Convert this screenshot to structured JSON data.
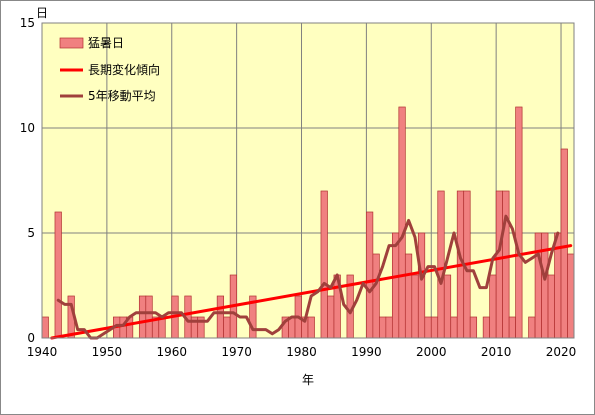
{
  "chart_data": {
    "type": "bar",
    "ylabel": "日",
    "xlabel": "年",
    "ylim": [
      0,
      15
    ],
    "xlim": [
      1940,
      2022
    ],
    "yticks": [
      0,
      5,
      10,
      15
    ],
    "xticks": [
      1940,
      1950,
      1960,
      1970,
      1980,
      1990,
      2000,
      2010,
      2020
    ],
    "grid": true,
    "legend_position": "top-left",
    "colors": {
      "bar_fill": "#F08080",
      "bar_stroke": "#B03030",
      "trend": "#FF0000",
      "moving_avg": "#A0403C",
      "plot_bg": "#FFFFC0",
      "grid": "#808080"
    },
    "series": [
      {
        "name": "猛暑日",
        "type": "bar",
        "x": [
          1940,
          1941,
          1942,
          1943,
          1944,
          1945,
          1946,
          1947,
          1948,
          1949,
          1950,
          1951,
          1952,
          1953,
          1954,
          1955,
          1956,
          1957,
          1958,
          1959,
          1960,
          1961,
          1962,
          1963,
          1964,
          1965,
          1966,
          1967,
          1968,
          1969,
          1970,
          1971,
          1972,
          1973,
          1974,
          1975,
          1976,
          1977,
          1978,
          1979,
          1980,
          1981,
          1982,
          1983,
          1984,
          1985,
          1986,
          1987,
          1988,
          1989,
          1990,
          1991,
          1992,
          1993,
          1994,
          1995,
          1996,
          1997,
          1998,
          1999,
          2000,
          2001,
          2002,
          2003,
          2004,
          2005,
          2006,
          2007,
          2008,
          2009,
          2010,
          2011,
          2012,
          2013,
          2014,
          2015,
          2016,
          2017,
          2018,
          2019,
          2020,
          2021
        ],
        "values": [
          1,
          0,
          6,
          0,
          2,
          0,
          0,
          0,
          0,
          0,
          0,
          1,
          1,
          1,
          0,
          2,
          2,
          1,
          1,
          0,
          2,
          0,
          2,
          1,
          1,
          0,
          0,
          2,
          1,
          3,
          0,
          0,
          2,
          0,
          0,
          0,
          0,
          1,
          1,
          2,
          1,
          1,
          0,
          7,
          2,
          3,
          0,
          3,
          0,
          0,
          6,
          4,
          1,
          1,
          5,
          11,
          4,
          3,
          5,
          1,
          1,
          7,
          3,
          1,
          7,
          7,
          1,
          0,
          1,
          3,
          7,
          7,
          1,
          11,
          0,
          1,
          5,
          5,
          3,
          5,
          9,
          4
        ]
      },
      {
        "name": "長期変化傾向",
        "type": "line",
        "x": [
          1941,
          2021
        ],
        "values": [
          0.0,
          4.4
        ]
      },
      {
        "name": "5年移動平均",
        "type": "line",
        "x": [
          1942,
          1943,
          1944,
          1945,
          1946,
          1947,
          1948,
          1949,
          1950,
          1951,
          1952,
          1953,
          1954,
          1955,
          1956,
          1957,
          1958,
          1959,
          1960,
          1961,
          1962,
          1963,
          1964,
          1965,
          1966,
          1967,
          1968,
          1969,
          1970,
          1971,
          1972,
          1973,
          1974,
          1975,
          1976,
          1977,
          1978,
          1979,
          1980,
          1981,
          1982,
          1983,
          1984,
          1985,
          1986,
          1987,
          1988,
          1989,
          1990,
          1991,
          1992,
          1993,
          1994,
          1995,
          1996,
          1997,
          1998,
          1999,
          2000,
          2001,
          2002,
          2003,
          2004,
          2005,
          2006,
          2007,
          2008,
          2009,
          2010,
          2011,
          2012,
          2013,
          2014,
          2015,
          2016,
          2017,
          2018,
          2019
        ],
        "values": [
          1.8,
          1.6,
          1.6,
          0.4,
          0.4,
          0.0,
          0.0,
          0.2,
          0.4,
          0.6,
          0.6,
          1.0,
          1.2,
          1.2,
          1.2,
          1.2,
          1.0,
          1.2,
          1.2,
          1.2,
          0.8,
          0.8,
          0.8,
          0.8,
          1.2,
          1.2,
          1.2,
          1.2,
          1.0,
          1.0,
          0.4,
          0.4,
          0.4,
          0.2,
          0.4,
          0.8,
          1.0,
          1.0,
          0.8,
          2.0,
          2.2,
          2.6,
          2.4,
          3.0,
          1.6,
          1.2,
          1.8,
          2.6,
          2.2,
          2.6,
          3.4,
          4.4,
          4.4,
          4.8,
          5.6,
          4.8,
          2.8,
          3.4,
          3.4,
          2.6,
          3.8,
          5.0,
          3.8,
          3.2,
          3.2,
          2.4,
          2.4,
          3.8,
          4.2,
          5.8,
          5.2,
          4.0,
          3.6,
          3.8,
          4.0,
          2.8,
          4.0,
          5.0
        ]
      }
    ]
  }
}
